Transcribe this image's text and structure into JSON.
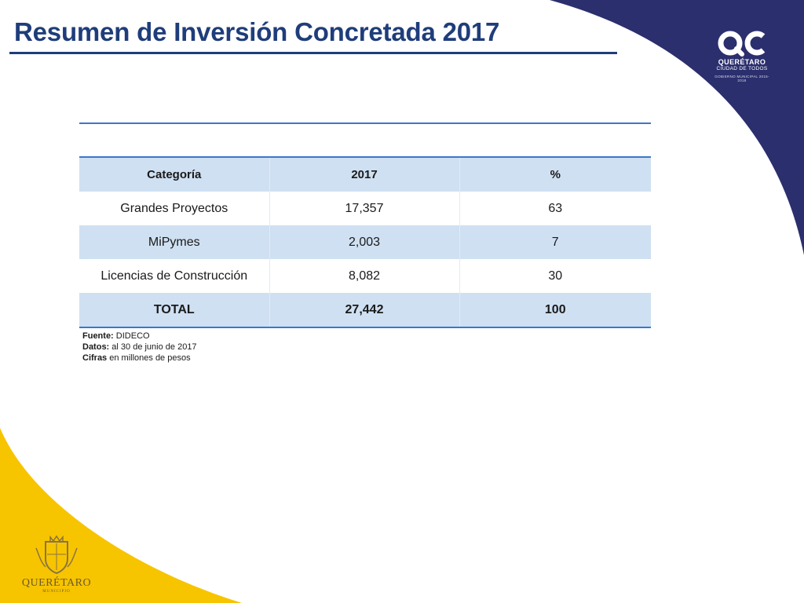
{
  "title": "Resumen de Inversión Concretada 2017",
  "colors": {
    "navy": "#2b2f6e",
    "gold": "#f7c400",
    "title": "#1f3d7a",
    "accent": "#3b78c8",
    "band": "#cfe0f2"
  },
  "brand_logo": {
    "name": "QUERÉTARO",
    "subtitle": "CIUDAD DE TODOS",
    "tagline": "GOBIERNO MUNICIPAL 2015-2018"
  },
  "municipal_logo": {
    "name": "QUERÉTARO",
    "subtitle": "MUNICIPIO"
  },
  "table": {
    "headers": [
      "Categoría",
      "2017",
      "%"
    ],
    "rows": [
      [
        "Grandes Proyectos",
        "17,357",
        "63"
      ],
      [
        "MiPymes",
        "2,003",
        "7"
      ],
      [
        "Licencias de Construcción",
        "8,082",
        "30"
      ]
    ],
    "total": [
      "TOTAL",
      "27,442",
      "100"
    ]
  },
  "notes": {
    "fuente_label": "Fuente:",
    "fuente_value": " DIDECO",
    "datos_label": "Datos:",
    "datos_value": " al 30  de junio de 2017",
    "cifras_label": "Cifras",
    "cifras_value": " en millones de pesos"
  }
}
